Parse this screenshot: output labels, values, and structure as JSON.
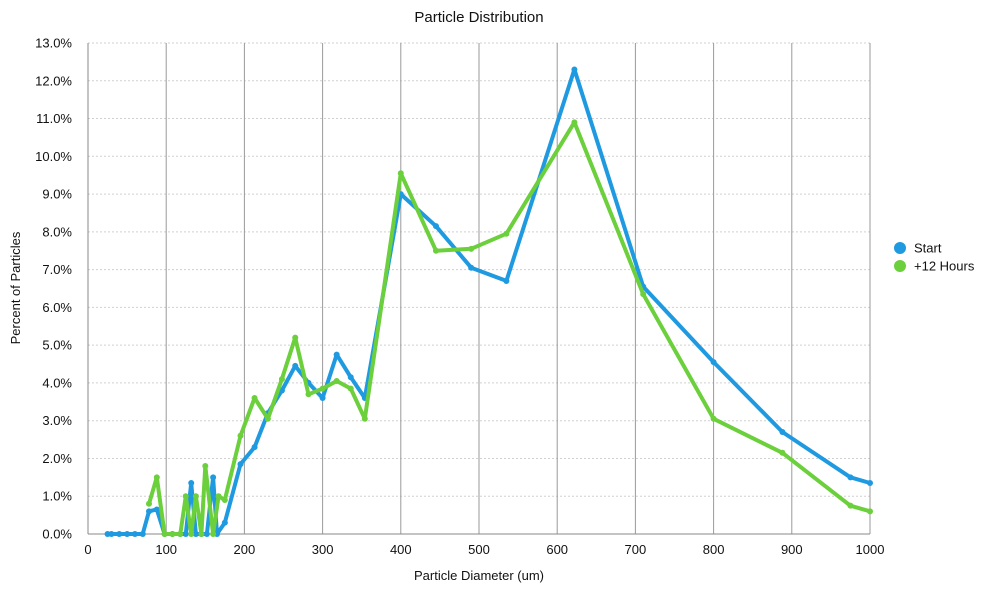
{
  "chart_data": {
    "type": "line",
    "title": "Particle Distribution",
    "xlabel": "Particle Diameter (um)",
    "ylabel": "Percent of Particles",
    "xlim": [
      0,
      1000
    ],
    "ylim": [
      0,
      13
    ],
    "x_ticks": [
      0,
      100,
      200,
      300,
      400,
      500,
      600,
      700,
      800,
      900,
      1000
    ],
    "x_tick_labels": [
      "0",
      "100",
      "200",
      "300",
      "400",
      "500",
      "600",
      "700",
      "800",
      "900",
      "1000"
    ],
    "y_ticks": [
      0,
      1,
      2,
      3,
      4,
      5,
      6,
      7,
      8,
      9,
      10,
      11,
      12,
      13
    ],
    "y_tick_labels": [
      "0.0%",
      "1.0%",
      "2.0%",
      "3.0%",
      "4.0%",
      "5.0%",
      "6.0%",
      "7.0%",
      "8.0%",
      "9.0%",
      "10.0%",
      "11.0%",
      "12.0%",
      "13.0%"
    ],
    "grid": true,
    "legend_position": "right",
    "series": [
      {
        "name": "Start",
        "color": "#1f9ae0",
        "x": [
          25,
          30,
          40,
          50,
          60,
          70,
          78,
          88,
          98,
          108,
          118,
          125,
          132,
          138,
          145,
          152,
          160,
          165,
          175,
          195,
          213,
          230,
          248,
          265,
          282,
          300,
          318,
          336,
          354,
          400,
          445,
          490,
          535,
          622,
          710,
          800,
          888,
          975,
          1000
        ],
        "y": [
          0,
          0,
          0,
          0,
          0,
          0,
          0.6,
          0.65,
          0,
          0,
          0,
          0,
          1.35,
          0,
          0,
          0,
          1.5,
          0,
          0.3,
          1.85,
          2.3,
          3.2,
          3.8,
          4.45,
          4.0,
          3.6,
          4.75,
          4.15,
          3.6,
          9.0,
          8.15,
          7.05,
          6.7,
          12.3,
          6.55,
          4.55,
          2.7,
          1.5,
          1.35
        ]
      },
      {
        "name": "+12 Hours",
        "color": "#6ccf3c",
        "x": [
          78,
          88,
          98,
          108,
          118,
          125,
          132,
          138,
          145,
          150,
          160,
          167,
          175,
          195,
          213,
          230,
          248,
          265,
          282,
          300,
          318,
          336,
          354,
          400,
          445,
          490,
          535,
          622,
          710,
          800,
          888,
          975,
          1000
        ],
        "y": [
          0.8,
          1.5,
          0,
          0,
          0,
          1.0,
          0,
          1.0,
          0,
          1.8,
          0,
          1.0,
          0.9,
          2.6,
          3.6,
          3.05,
          4.1,
          5.2,
          3.7,
          3.85,
          4.05,
          3.85,
          3.05,
          9.55,
          7.5,
          7.55,
          7.95,
          10.9,
          6.35,
          3.05,
          2.15,
          0.75,
          0.6
        ]
      }
    ]
  }
}
